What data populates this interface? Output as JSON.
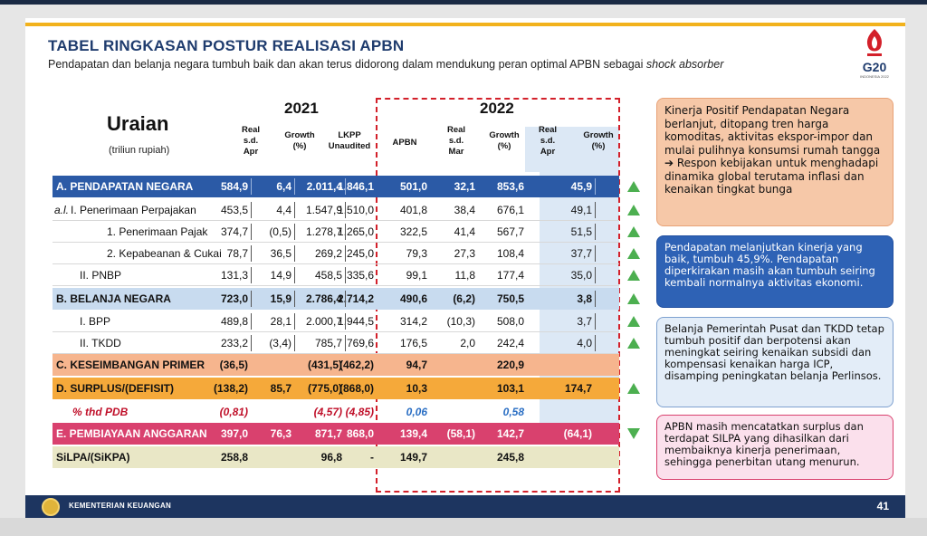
{
  "slide": {
    "title": "TABEL RINGKASAN POSTUR REALISASI APBN",
    "subtitle": "Pendapatan dan belanja negara tumbuh baik dan akan terus didorong dalam mendukung peran optimal APBN sebagai",
    "subtitle_italic": "shock absorber",
    "g20_text": "G20",
    "g20_sub": "INDONESIA 2022"
  },
  "table": {
    "uraian": "Uraian",
    "uraian_sub": "(triliun rupiah)",
    "year_2021": "2021",
    "year_2022": "2022",
    "columns": [
      "Real\ns.d.\nApr",
      "Growth\n(%)",
      "LKPP\nUnaudited",
      "APBN",
      "Real\ns.d.\nMar",
      "Growth\n(%)",
      "Real\ns.d.\nApr",
      "Growth\n(%)"
    ],
    "rows": [
      {
        "label": "A. PENDAPATAN NEGARA",
        "values": [
          "584,9",
          "6,4",
          "2.011,4",
          "1.846,1",
          "501,0",
          "32,1",
          "853,6",
          "45,9"
        ],
        "trend": "up"
      },
      {
        "prefix": "a.l.",
        "label": "I.   Penerimaan Perpajakan",
        "values": [
          "453,5",
          "4,4",
          "1.547,9",
          "1.510,0",
          "401,8",
          "38,4",
          "676,1",
          "49,1"
        ],
        "trend": "up"
      },
      {
        "label": "1.  Penerimaan Pajak",
        "values": [
          "374,7",
          "(0,5)",
          "1.278,7",
          "1.265,0",
          "322,5",
          "41,4",
          "567,7",
          "51,5"
        ],
        "trend": "up"
      },
      {
        "label": "2.  Kepabeanan & Cukai",
        "values": [
          "78,7",
          "36,5",
          "269,2",
          "245,0",
          "79,3",
          "27,3",
          "108,4",
          "37,7"
        ],
        "trend": "up"
      },
      {
        "label": "II.  PNBP",
        "values": [
          "131,3",
          "14,9",
          "458,5",
          "335,6",
          "99,1",
          "11,8",
          "177,4",
          "35,0"
        ],
        "trend": "up"
      },
      {
        "label": "B. BELANJA NEGARA",
        "values": [
          "723,0",
          "15,9",
          "2.786,4",
          "2.714,2",
          "490,6",
          "(6,2)",
          "750,5",
          "3,8"
        ],
        "trend": "up"
      },
      {
        "label": "I.   BPP",
        "values": [
          "489,8",
          "28,1",
          "2.000,7",
          "1.944,5",
          "314,2",
          "(10,3)",
          "508,0",
          "3,7"
        ],
        "trend": "up"
      },
      {
        "label": "II.  TKDD",
        "values": [
          "233,2",
          "(3,4)",
          "785,7",
          "769,6",
          "176,5",
          "2,0",
          "242,4",
          "4,0"
        ],
        "trend": "up"
      },
      {
        "label": "C. KESEIMBANGAN PRIMER",
        "values": [
          "(36,5)",
          "",
          "(431,5)",
          "(462,2)",
          "94,7",
          "",
          "220,9",
          ""
        ],
        "trend": ""
      },
      {
        "label": "D. SURPLUS/(DEFISIT)",
        "values": [
          "(138,2)",
          "85,7",
          "(775,0)",
          "(868,0)",
          "10,3",
          "",
          "103,1",
          "174,7"
        ],
        "trend": "up"
      },
      {
        "label": "% thd PDB",
        "values": [
          "(0,81)",
          "",
          "(4,57)",
          "(4,85)",
          "0,06",
          "",
          "0,58",
          ""
        ],
        "trend": ""
      },
      {
        "label": "E. PEMBIAYAAN ANGGARAN",
        "values": [
          "397,0",
          "76,3",
          "871,7",
          "868,0",
          "139,4",
          "(58,1)",
          "142,7",
          "(64,1)"
        ],
        "trend": "down"
      },
      {
        "label": "SiLPA/(SiKPA)",
        "values": [
          "258,8",
          "",
          "96,8",
          "-",
          "149,7",
          "",
          "245,8",
          ""
        ],
        "trend": ""
      }
    ]
  },
  "notes": [
    "Kinerja Positif Pendapatan Negara berlanjut, ditopang tren harga komoditas, aktivitas ekspor-impor dan mulai pulihnya konsumsi rumah tangga ➔ Respon kebijakan untuk menghadapi dinamika global terutama inflasi dan kenaikan tingkat bunga",
    "Pendapatan melanjutkan kinerja yang baik, tumbuh 45,9%. Pendapatan diperkirakan masih akan tumbuh seiring kembali normalnya aktivitas ekonomi.",
    "Belanja Pemerintah Pusat dan TKDD tetap tumbuh positif dan berpotensi akan meningkat seiring kenaikan subsidi dan kompensasi kenaikan harga ICP, disamping peningkatan belanja Perlinsos.",
    "APBN masih mencatatkan surplus dan terdapat SILPA yang dihasilkan dari membaiknya kinerja penerimaan, sehingga penerbitan utang menurun."
  ],
  "footer": {
    "org": "KEMENTERIAN KEUANGAN",
    "page": "41"
  },
  "colors": {
    "navy": "#1d3560",
    "gold": "#f2b21c",
    "dash_red": "#d3202a",
    "trend_green": "#4caf50"
  }
}
